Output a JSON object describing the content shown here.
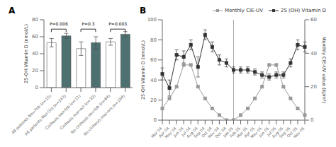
{
  "chart_data": [
    {
      "type": "bar",
      "title": "A",
      "ylabel": "25-OH Vitamin D (nmol/L)",
      "categories": [
        "All patients Nov-Feb (n=15)",
        "All patients Mar-Oct (n=243)",
        "Cirrhosis non-feb (n=11)",
        "Cirrhosis mar-oct (n=32)",
        "No cirrhosis nov-feb (n=84)",
        "No cirrhosis mar-oct (n=194)"
      ],
      "values": [
        53,
        61,
        46,
        53,
        54,
        63
      ],
      "errors": [
        5,
        3,
        8,
        7,
        4,
        3
      ],
      "colors": [
        "white",
        "#4d7070",
        "white",
        "#4d7070",
        "white",
        "#4d7070"
      ],
      "ylim": [
        0,
        80
      ],
      "yticks": [
        0,
        20,
        40,
        60,
        80
      ],
      "annotations": [
        {
          "text": "P=0.006",
          "from": "All patients Nov-Feb (n=15)",
          "to": "All patients Mar-Oct (n=243)",
          "y": 69
        },
        {
          "text": "P=0.3",
          "from": "Cirrhosis non-feb (n=11)",
          "to": "Cirrhosis mar-oct (n=32)",
          "y": 69
        },
        {
          "text": "P=0.003",
          "from": "No cirrhosis nov-feb (n=84)",
          "to": "No cirrhosis mar-oct (n=194)",
          "y": 69
        }
      ]
    },
    {
      "type": "line",
      "title": "B",
      "ylabel": "25-OH Vitamin D (nmol/L)",
      "y2label": "Monthly CIE-UV value (kJ/m²)",
      "categories": [
        "Mar 04",
        "Apr 04",
        "May 04",
        "Jun 04",
        "Jul 04",
        "Aug 04",
        "Sep 04",
        "Oct 04",
        "Nov 04",
        "Dec 04",
        "Jan 05",
        "Feb 05",
        "Mar 05",
        "Apr 05",
        "May 05",
        "Jun 05",
        "Jul 05",
        "Aug 05",
        "Sep 05",
        "Oct 05",
        "Nov 05"
      ],
      "series": [
        {
          "name": "Monthly CIE-UV",
          "color": "#999999",
          "marker": "square",
          "axis": "y2",
          "values": [
            7,
            13,
            20,
            33,
            33,
            20,
            13,
            7,
            3,
            0,
            0,
            3,
            7,
            13,
            20,
            33,
            33,
            20,
            13,
            7,
            3
          ]
        },
        {
          "name": "25 (OH) Vitamin D",
          "color": "#333333",
          "marker": "square",
          "values": [
            46,
            32,
            65,
            63,
            75,
            53,
            85,
            73,
            60,
            57,
            50,
            50,
            50,
            48,
            45,
            43,
            45,
            45,
            57,
            75,
            73
          ],
          "errors": [
            6,
            8,
            5,
            6,
            5,
            10,
            5,
            5,
            5,
            4,
            3,
            3,
            3,
            3,
            3,
            3,
            3,
            3,
            4,
            5,
            5
          ]
        }
      ],
      "ylim": [
        0,
        100
      ],
      "yticks": [
        0,
        20,
        40,
        60,
        80,
        100
      ],
      "y2lim": [
        0,
        60
      ],
      "y2ticks": [
        0,
        20,
        40,
        60
      ],
      "legend": "upper right",
      "vline": "Jan 05"
    }
  ]
}
